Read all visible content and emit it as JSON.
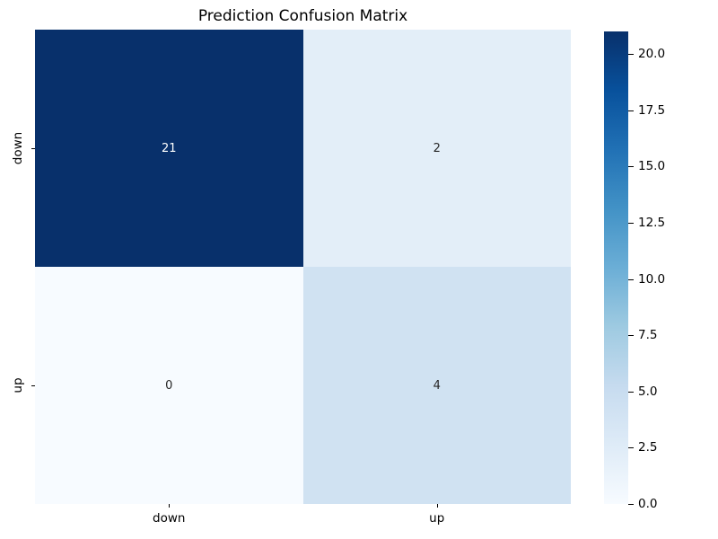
{
  "window": {
    "background_color": "#ffffff"
  },
  "chart_data": {
    "type": "heatmap",
    "title": "Prediction Confusion Matrix",
    "x_categories": [
      "down",
      "up"
    ],
    "y_categories": [
      "down",
      "up"
    ],
    "values": [
      [
        21,
        2
      ],
      [
        0,
        4
      ]
    ],
    "vmin": 0,
    "vmax": 21,
    "colormap": "Blues",
    "cell_colors": [
      [
        "#08306b",
        "#e3eef8"
      ],
      [
        "#f7fbff",
        "#d0e2f2"
      ]
    ],
    "annot_colors": [
      [
        "#ffffff",
        "#262626"
      ],
      [
        "#262626",
        "#262626"
      ]
    ],
    "colorbar_tick_values": [
      0.0,
      2.5,
      5.0,
      7.5,
      10.0,
      12.5,
      15.0,
      17.5,
      20.0
    ],
    "colorbar_tick_labels": [
      "0.0",
      "2.5",
      "5.0",
      "7.5",
      "10.0",
      "12.5",
      "15.0",
      "17.5",
      "20.0"
    ],
    "colorbar_gradient": [
      "#f7fbff",
      "#deebf7",
      "#c6dbef",
      "#9ecae1",
      "#6baed6",
      "#4292c6",
      "#2171b5",
      "#08519c",
      "#08306b"
    ],
    "legend_position": "right colorbar",
    "grid": false,
    "text_color": "#000000"
  }
}
